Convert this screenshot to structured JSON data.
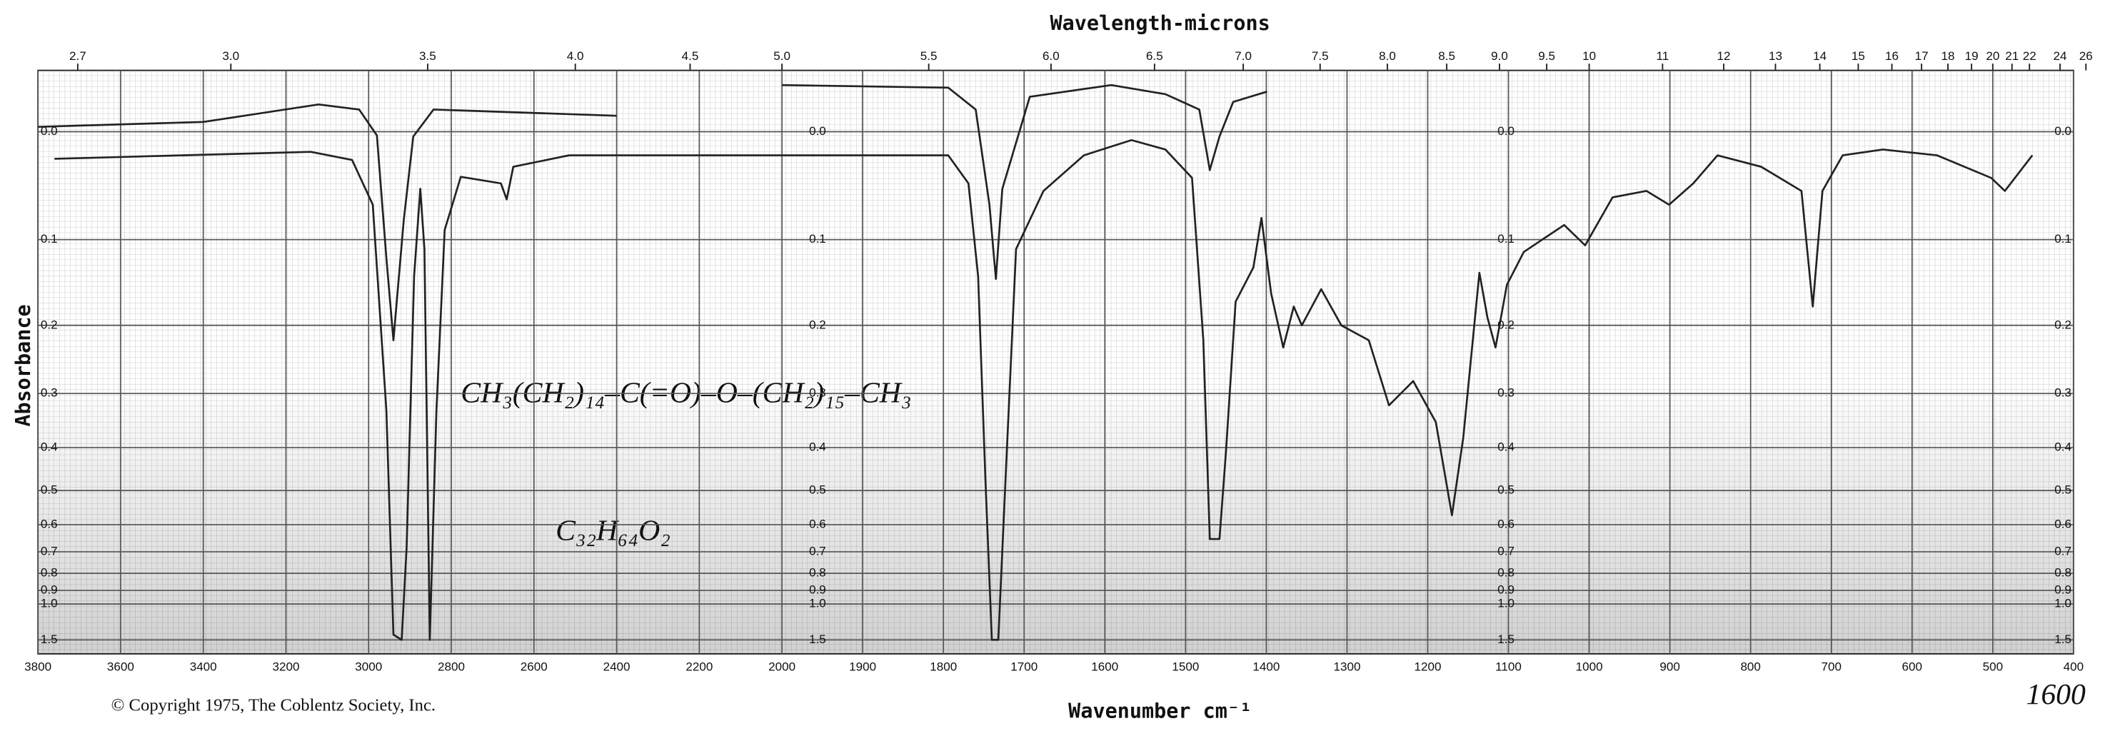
{
  "chart_data": {
    "type": "line",
    "title": "Wavelength-microns",
    "x_label": "Wavenumber cm⁻¹",
    "y_label": "Absorbance",
    "copyright": "© Copyright 1975, The Coblentz Society, Inc.",
    "annotations": [
      "CH₃(CH₂)₁₄–C(=O)–O–(CH₂)₁₅–CH₃",
      "C₃₂H₆₄O₂",
      "1600"
    ],
    "xlim": [
      3800,
      400
    ],
    "xscale_break": 2000,
    "xticks": [
      3800,
      3600,
      3400,
      3200,
      3000,
      2800,
      2600,
      2400,
      2200,
      2000,
      1900,
      1800,
      1700,
      1600,
      1500,
      1400,
      1300,
      1200,
      1100,
      1000,
      900,
      800,
      700,
      600,
      500,
      400
    ],
    "x2ticks": [
      2.7,
      {
        "value": 3,
        "label": "3.0"
      },
      3.5,
      {
        "value": 4,
        "label": "4.0"
      },
      4.5,
      {
        "value": 5,
        "label": "5.0"
      },
      5.5,
      {
        "value": 6,
        "label": "6.0"
      },
      6.5,
      {
        "value": 7,
        "label": "7.0"
      },
      7.5,
      {
        "value": 8,
        "label": "8.0"
      },
      8.5,
      {
        "value": 9,
        "label": "9.0"
      },
      9.5,
      10,
      11,
      12,
      13,
      14,
      15,
      16,
      17,
      18,
      19,
      20,
      21,
      22,
      24,
      26
    ],
    "ylim": [
      -0.048,
      2.3
    ],
    "yticks": [
      {
        "value": 0,
        "label": "0.0"
      },
      0.1,
      0.2,
      0.3,
      0.4,
      0.5,
      0.6,
      0.7,
      0.8,
      0.9,
      {
        "value": 1,
        "label": "1.0"
      },
      1.5
    ],
    "grid": true,
    "series": [
      {
        "color": "#222222",
        "x": [
          3760,
          3140,
          3040,
          2990,
          2957,
          2940,
          2920,
          2908,
          2890,
          2875,
          2865,
          2852,
          2836,
          2816,
          2777,
          2680,
          2666,
          2650,
          2515,
          2095,
          1794,
          1769,
          1757,
          1748,
          1740,
          1732,
          1723,
          1710,
          1676,
          1626,
          1567,
          1525,
          1492,
          1478,
          1470,
          1458,
          1450,
          1438,
          1416,
          1406,
          1394,
          1379,
          1366,
          1356,
          1332,
          1307,
          1273,
          1248,
          1218,
          1190,
          1170,
          1156,
          1136,
          1126,
          1116,
          1102,
          1081,
          1031,
          1005,
          971,
          929,
          901,
          871,
          841,
          787,
          737,
          723,
          711,
          686,
          636,
          569,
          502,
          485,
          451
        ],
        "values": [
          0.023,
          0.017,
          0.024,
          0.065,
          0.33,
          1.38,
          1.5,
          0.68,
          0.14,
          0.05,
          0.11,
          1.5,
          0.33,
          0.09,
          0.039,
          0.045,
          0.06,
          0.03,
          0.02,
          0.02,
          0.02,
          0.045,
          0.14,
          0.47,
          1.5,
          1.5,
          0.47,
          0.11,
          0.052,
          0.02,
          0.007,
          0.015,
          0.04,
          0.22,
          0.65,
          0.65,
          0.41,
          0.17,
          0.13,
          0.078,
          0.16,
          0.23,
          0.176,
          0.2,
          0.155,
          0.2,
          0.22,
          0.32,
          0.28,
          0.35,
          0.57,
          0.38,
          0.136,
          0.19,
          0.23,
          0.15,
          0.113,
          0.085,
          0.106,
          0.058,
          0.052,
          0.065,
          0.045,
          0.02,
          0.03,
          0.052,
          0.176,
          0.052,
          0.02,
          0.015,
          0.02,
          0.04,
          0.052,
          0.02
        ]
      },
      {
        "color": "#222222",
        "x": [
          3800,
          3400,
          3121,
          3023,
          2980,
          2957,
          2940,
          2915,
          2892,
          2843,
          2400
        ],
        "values": [
          -0.004,
          -0.008,
          -0.022,
          -0.018,
          0.003,
          0.12,
          0.22,
          0.08,
          0.004,
          -0.018,
          -0.013
        ]
      },
      {
        "color": "#222222",
        "x": [
          2000,
          1794,
          1760,
          1743,
          1735,
          1727,
          1693,
          1592,
          1525,
          1483,
          1470,
          1458,
          1441,
          1399
        ],
        "values": [
          -0.037,
          -0.035,
          -0.018,
          0.065,
          0.143,
          0.05,
          -0.028,
          -0.037,
          -0.03,
          -0.018,
          0.033,
          0.004,
          -0.024,
          -0.032
        ]
      }
    ]
  }
}
